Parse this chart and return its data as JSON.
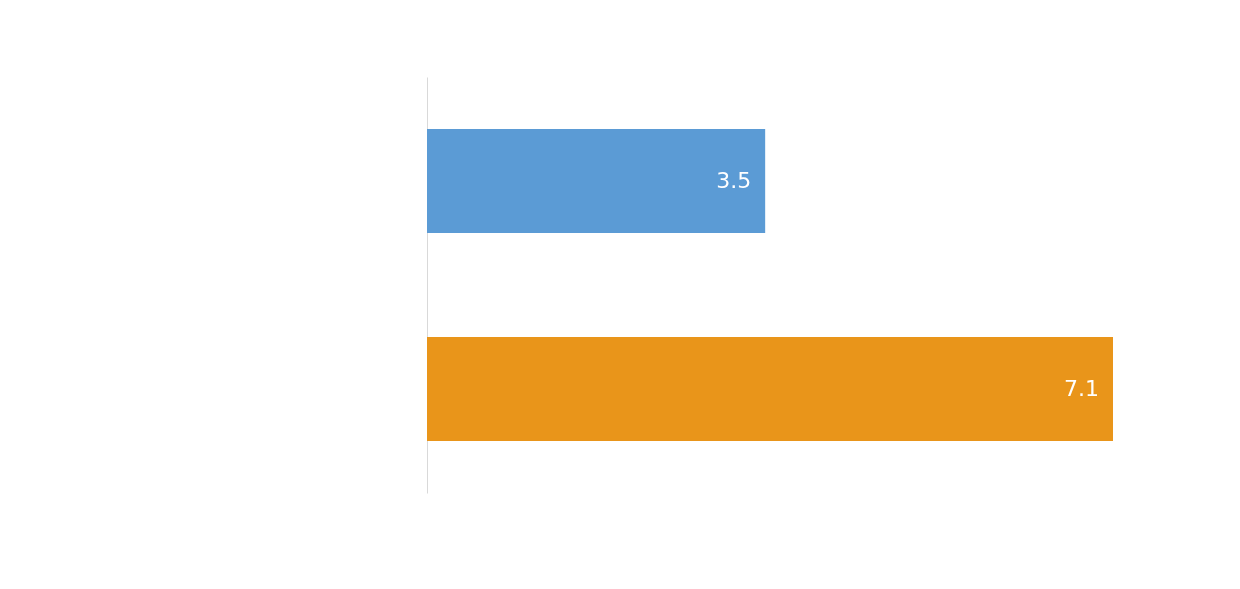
{
  "chart_data": {
    "type": "bar",
    "orientation": "horizontal",
    "categories": [
      null,
      null
    ],
    "values": [
      3.5,
      7.1
    ],
    "colors": [
      "#5b9bd5",
      "#e9951a"
    ],
    "data_labels": true
  }
}
